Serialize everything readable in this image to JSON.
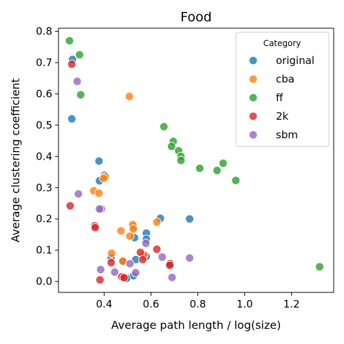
{
  "chart_data": {
    "type": "scatter",
    "title": "Food",
    "xlabel": "Average path  length / log(size)",
    "ylabel": "Average clustering coefficient",
    "xlim": [
      0.205,
      1.38
    ],
    "ylim": [
      -0.035,
      0.81
    ],
    "xticks": [
      0.4,
      0.6,
      0.8,
      1.0,
      1.2
    ],
    "yticks": [
      0.0,
      0.1,
      0.2,
      0.3,
      0.4,
      0.5,
      0.6,
      0.7,
      0.8
    ],
    "xtick_labels": [
      "0.4",
      "0.6",
      "0.8",
      "1.0",
      "1.2"
    ],
    "ytick_labels": [
      "0.0",
      "0.1",
      "0.2",
      "0.3",
      "0.4",
      "0.5",
      "0.6",
      "0.7",
      "0.8"
    ],
    "grid": false,
    "legend": {
      "title": "Category",
      "position": "top-right"
    },
    "series": [
      {
        "name": "original",
        "color": "#1f77b4",
        "points": [
          [
            0.265,
            0.71
          ],
          [
            0.262,
            0.52
          ],
          [
            0.378,
            0.385
          ],
          [
            0.402,
            0.34
          ],
          [
            0.38,
            0.322
          ],
          [
            0.64,
            0.202
          ],
          [
            0.765,
            0.2
          ],
          [
            0.525,
            0.175
          ],
          [
            0.58,
            0.155
          ],
          [
            0.53,
            0.14
          ],
          [
            0.58,
            0.135
          ],
          [
            0.43,
            0.075
          ],
          [
            0.48,
            0.065
          ],
          [
            0.535,
            0.07
          ],
          [
            0.57,
            0.08
          ],
          [
            0.58,
            0.08
          ],
          [
            0.682,
            0.05
          ],
          [
            0.5,
            0.012
          ],
          [
            0.525,
            0.018
          ],
          [
            0.495,
            0.01
          ]
        ]
      },
      {
        "name": "cba",
        "color": "#ff7f0e",
        "points": [
          [
            0.508,
            0.592
          ],
          [
            0.356,
            0.29
          ],
          [
            0.378,
            0.282
          ],
          [
            0.405,
            0.335
          ],
          [
            0.398,
            0.33
          ],
          [
            0.625,
            0.19
          ],
          [
            0.522,
            0.182
          ],
          [
            0.525,
            0.168
          ],
          [
            0.472,
            0.162
          ],
          [
            0.51,
            0.145
          ],
          [
            0.432,
            0.09
          ],
          [
            0.57,
            0.085
          ],
          [
            0.48,
            0.065
          ],
          [
            0.68,
            0.057
          ]
        ]
      },
      {
        "name": "ff",
        "color": "#2ca02c",
        "points": [
          [
            0.252,
            0.77
          ],
          [
            0.295,
            0.725
          ],
          [
            0.3,
            0.597
          ],
          [
            0.655,
            0.495
          ],
          [
            0.695,
            0.448
          ],
          [
            0.688,
            0.432
          ],
          [
            0.718,
            0.418
          ],
          [
            0.728,
            0.4
          ],
          [
            0.728,
            0.387
          ],
          [
            0.808,
            0.362
          ],
          [
            0.908,
            0.378
          ],
          [
            0.882,
            0.355
          ],
          [
            0.962,
            0.323
          ],
          [
            1.32,
            0.047
          ]
        ]
      },
      {
        "name": "2k",
        "color": "#d62728",
        "points": [
          [
            0.262,
            0.695
          ],
          [
            0.255,
            0.242
          ],
          [
            0.36,
            0.178
          ],
          [
            0.362,
            0.172
          ],
          [
            0.625,
            0.103
          ],
          [
            0.555,
            0.093
          ],
          [
            0.565,
            0.07
          ],
          [
            0.43,
            0.06
          ],
          [
            0.682,
            0.057
          ],
          [
            0.68,
            0.052
          ],
          [
            0.475,
            0.015
          ],
          [
            0.485,
            0.012
          ],
          [
            0.382,
            0.005
          ]
        ]
      },
      {
        "name": "sbm",
        "color": "#9467bd",
        "points": [
          [
            0.285,
            0.64
          ],
          [
            0.29,
            0.28
          ],
          [
            0.388,
            0.232
          ],
          [
            0.38,
            0.232
          ],
          [
            0.578,
            0.122
          ],
          [
            0.648,
            0.078
          ],
          [
            0.765,
            0.075
          ],
          [
            0.51,
            0.057
          ],
          [
            0.385,
            0.038
          ],
          [
            0.445,
            0.03
          ],
          [
            0.535,
            0.028
          ],
          [
            0.69,
            0.013
          ]
        ]
      }
    ]
  }
}
